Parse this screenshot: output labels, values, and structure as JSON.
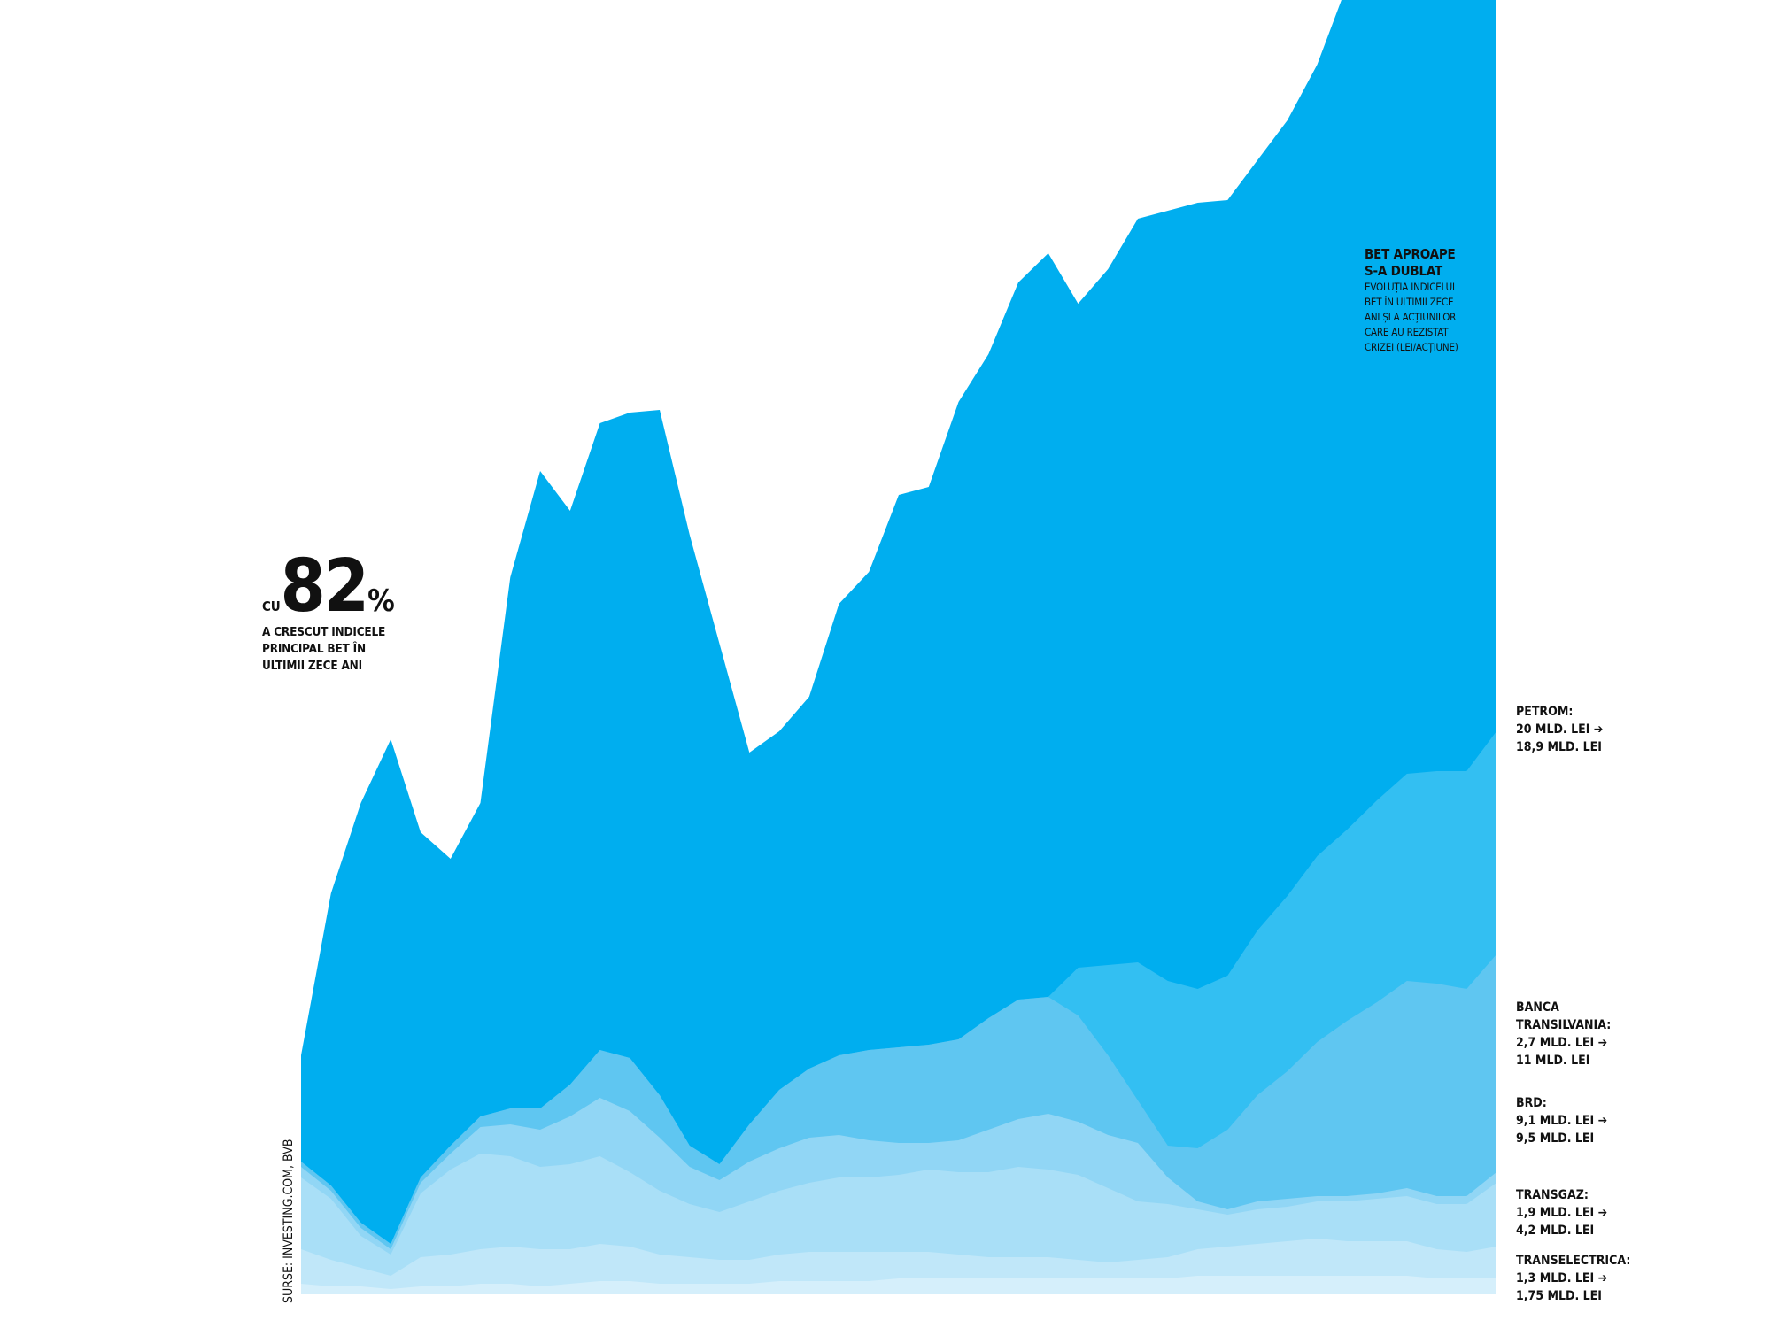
{
  "intro": {
    "prefix": "CU",
    "value": "82",
    "unit": "%",
    "text_lines": [
      "A CRESCUT INDICELE",
      "PRINCIPAL BET ÎN",
      "ULTIMII ZECE ANI"
    ]
  },
  "heading": {
    "title_lines": [
      "BET APROAPE",
      "S-A DUBLAT"
    ],
    "subtitle_lines": [
      "EVOLUȚIA INDICELUI",
      "BET ÎN ULTIMII ZECE",
      "ANI ȘI A ACȚIUNILOR",
      "CARE AU REZISTAT",
      "CRIZEI (LEI/ACȚIUNE)"
    ]
  },
  "source": "SURSE: INVESTING.COM, BVB",
  "chart_data": {
    "type": "area",
    "stacked": true,
    "x": [
      0,
      1,
      2,
      3,
      4,
      5,
      6,
      7,
      8,
      9,
      10,
      11,
      12,
      13,
      14,
      15,
      16,
      17,
      18,
      19,
      20,
      21,
      22,
      23,
      24,
      25,
      26,
      27,
      28,
      29,
      30,
      31,
      32,
      33,
      34,
      35,
      36,
      37,
      38,
      39,
      40
    ],
    "series": [
      {
        "name": "TRANSELECTRICA",
        "label_lines": [
          "TRANSELECTRICA:",
          "1,3 MLD. LEI ➔",
          "1,75 MLD. LEI"
        ],
        "color": "#d5effb",
        "values": [
          4,
          3,
          3,
          2,
          3,
          3,
          4,
          4,
          3,
          4,
          5,
          5,
          4,
          4,
          4,
          4,
          5,
          5,
          5,
          5,
          6,
          6,
          6,
          6,
          6,
          6,
          6,
          6,
          6,
          6,
          7,
          7,
          7,
          7,
          7,
          7,
          7,
          7,
          6,
          6,
          6
        ]
      },
      {
        "name": "TRANSGAZ",
        "label_lines": [
          "TRANSGAZ:",
          "1,9 MLD. LEI ➔",
          "4,2 MLD. LEI"
        ],
        "color": "#c0e7f9",
        "values": [
          13,
          10,
          7,
          5,
          11,
          12,
          13,
          14,
          14,
          13,
          14,
          13,
          11,
          10,
          9,
          9,
          10,
          11,
          11,
          11,
          10,
          10,
          9,
          8,
          8,
          8,
          7,
          6,
          7,
          8,
          10,
          11,
          12,
          13,
          14,
          13,
          13,
          13,
          11,
          10,
          12
        ]
      },
      {
        "name": "BRD",
        "label_lines": [
          "BRD:",
          "9,1 MLD. LEI ➔",
          "9,5 MLD. LEI"
        ],
        "color": "#a9dff7",
        "values": [
          27,
          23,
          12,
          8,
          24,
          32,
          36,
          34,
          31,
          32,
          33,
          28,
          24,
          20,
          18,
          22,
          24,
          26,
          28,
          28,
          29,
          31,
          31,
          32,
          34,
          33,
          32,
          28,
          22,
          20,
          15,
          12,
          13,
          13,
          14,
          15,
          16,
          17,
          17,
          18,
          24
        ]
      },
      {
        "name": "BANCA TRANSILVANIA",
        "label_lines": [
          "BANCA",
          "TRANSILVANIA:",
          "2,7 MLD. LEI ➔",
          "11 MLD. LEI"
        ],
        "color": "#91d6f5",
        "values": [
          4,
          3,
          3,
          2,
          4,
          6,
          10,
          12,
          14,
          18,
          22,
          23,
          20,
          14,
          12,
          15,
          16,
          17,
          16,
          14,
          12,
          10,
          12,
          16,
          18,
          21,
          20,
          20,
          22,
          10,
          3,
          2,
          3,
          3,
          2,
          2,
          2,
          3,
          3,
          3,
          4
        ]
      },
      {
        "name": "PETROM",
        "label_lines": [
          "PETROM:",
          "20 MLD. LEI ➔",
          "18,9 MLD. LEI"
        ],
        "color": "#5fc6f1",
        "values": [
          2,
          2,
          2,
          2,
          2,
          3,
          4,
          6,
          8,
          12,
          18,
          20,
          16,
          8,
          6,
          14,
          22,
          26,
          30,
          34,
          36,
          37,
          38,
          42,
          45,
          44,
          40,
          30,
          16,
          12,
          20,
          30,
          40,
          48,
          58,
          66,
          72,
          78,
          80,
          78,
          82
        ]
      },
      {
        "name": "BET",
        "color": "#33bff2",
        "values": [
          0,
          0,
          0,
          0,
          0,
          0,
          0,
          0,
          0,
          0,
          0,
          0,
          0,
          0,
          0,
          0,
          0,
          0,
          0,
          0,
          0,
          0,
          0,
          0,
          0,
          0,
          18,
          34,
          52,
          62,
          60,
          58,
          62,
          66,
          70,
          72,
          76,
          78,
          80,
          82,
          84
        ]
      },
      {
        "name": "BET_TOP",
        "color": "#00aeef",
        "values": [
          40,
          110,
          158,
          190,
          130,
          108,
          118,
          200,
          240,
          216,
          236,
          243,
          258,
          230,
          196,
          140,
          135,
          140,
          170,
          180,
          208,
          210,
          240,
          250,
          270,
          280,
          250,
          262,
          280,
          290,
          296,
          292,
          290,
          292,
          298,
          318,
          322,
          304,
          316,
          310,
          300
        ]
      }
    ]
  }
}
